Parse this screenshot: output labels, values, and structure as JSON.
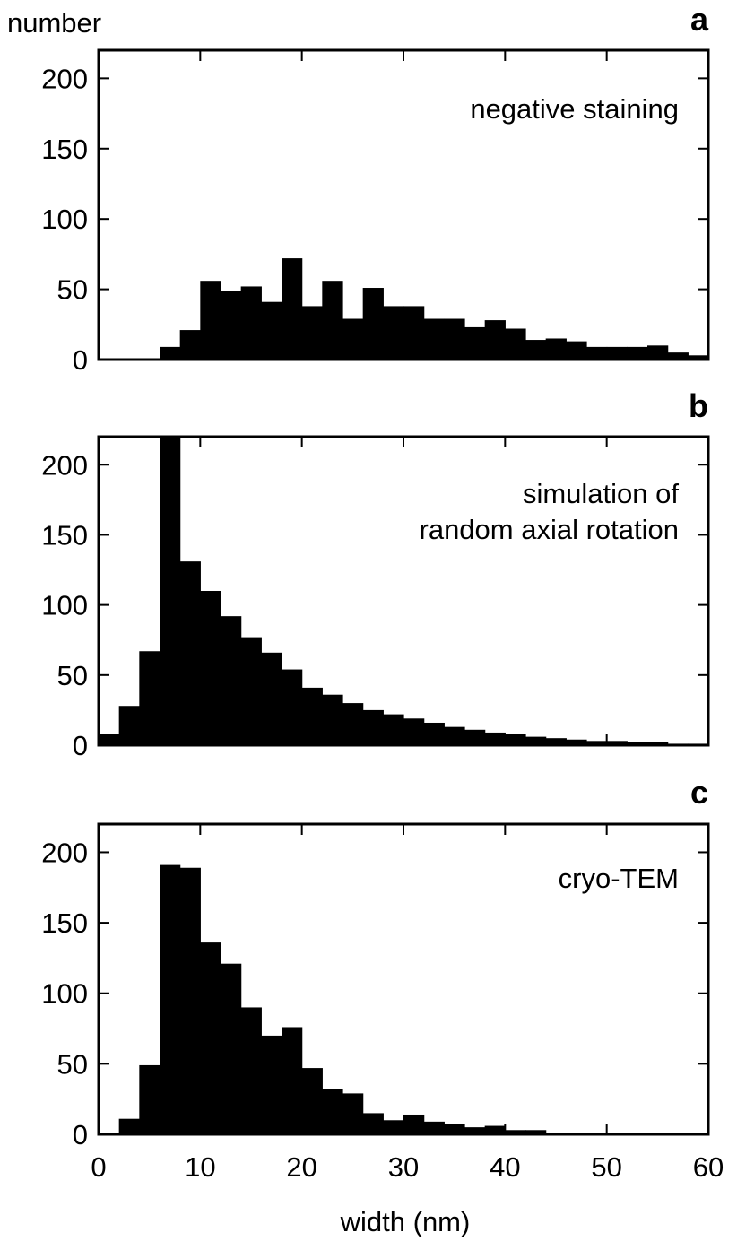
{
  "figure": {
    "ylabel": "number",
    "xlabel": "width (nm)"
  },
  "chart_data": [
    {
      "type": "bar",
      "panel_label": "a",
      "annotation": [
        "negative staining"
      ],
      "bin_width": 2,
      "x": [
        0,
        2,
        4,
        6,
        8,
        10,
        12,
        14,
        16,
        18,
        20,
        22,
        24,
        26,
        28,
        30,
        32,
        34,
        36,
        38,
        40,
        42,
        44,
        46,
        48,
        50,
        52,
        54,
        56,
        58
      ],
      "values": [
        0,
        0,
        0,
        9,
        21,
        56,
        49,
        52,
        41,
        72,
        38,
        56,
        29,
        51,
        38,
        38,
        29,
        29,
        23,
        28,
        22,
        14,
        15,
        13,
        9,
        9,
        9,
        10,
        5,
        3
      ],
      "xlim": [
        0,
        60
      ],
      "ylim": [
        0,
        220
      ],
      "xticks": [
        0,
        10,
        20,
        30,
        40,
        50,
        60
      ],
      "yticks": [
        0,
        50,
        100,
        150,
        200
      ],
      "show_x_tick_labels": false,
      "grid": false
    },
    {
      "type": "bar",
      "panel_label": "b",
      "annotation": [
        "simulation of",
        "random axial rotation"
      ],
      "bin_width": 2,
      "x": [
        0,
        2,
        4,
        6,
        8,
        10,
        12,
        14,
        16,
        18,
        20,
        22,
        24,
        26,
        28,
        30,
        32,
        34,
        36,
        38,
        40,
        42,
        44,
        46,
        48,
        50,
        52,
        54,
        56,
        58
      ],
      "values": [
        8,
        28,
        67,
        220,
        131,
        110,
        92,
        77,
        66,
        54,
        41,
        36,
        30,
        25,
        22,
        19,
        16,
        13,
        11,
        9,
        8,
        6,
        5,
        4,
        3,
        3,
        2,
        2,
        1,
        1
      ],
      "xlim": [
        0,
        60
      ],
      "ylim": [
        0,
        220
      ],
      "xticks": [
        0,
        10,
        20,
        30,
        40,
        50,
        60
      ],
      "yticks": [
        0,
        50,
        100,
        150,
        200
      ],
      "show_x_tick_labels": false,
      "grid": false
    },
    {
      "type": "bar",
      "panel_label": "c",
      "annotation": [
        "cryo-TEM"
      ],
      "bin_width": 2,
      "x": [
        0,
        2,
        4,
        6,
        8,
        10,
        12,
        14,
        16,
        18,
        20,
        22,
        24,
        26,
        28,
        30,
        32,
        34,
        36,
        38,
        40,
        42,
        44,
        46,
        48,
        50,
        52,
        54,
        56,
        58
      ],
      "values": [
        0,
        11,
        49,
        191,
        189,
        136,
        121,
        90,
        70,
        76,
        47,
        32,
        29,
        15,
        10,
        14,
        9,
        7,
        5,
        6,
        3,
        3,
        1,
        1,
        0,
        0,
        0,
        0,
        0,
        0
      ],
      "xlim": [
        0,
        60
      ],
      "ylim": [
        0,
        220
      ],
      "xticks": [
        0,
        10,
        20,
        30,
        40,
        50,
        60
      ],
      "yticks": [
        0,
        50,
        100,
        150,
        200
      ],
      "show_x_tick_labels": true,
      "grid": false
    }
  ]
}
